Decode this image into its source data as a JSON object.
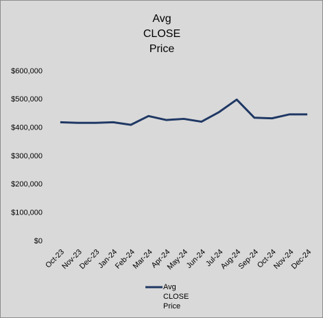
{
  "chart_data": {
    "type": "line",
    "title": "Avg CLOSE Price",
    "categories": [
      "Oct-23",
      "Nov-23",
      "Dec-23",
      "Jan-24",
      "Feb-24",
      "Mar-24",
      "Apr-24",
      "May-24",
      "Jun-24",
      "Jul-24",
      "Aug-24",
      "Sep-24",
      "Oct-24",
      "Nov-24",
      "Dec-24"
    ],
    "series": [
      {
        "name": "Avg CLOSE Price",
        "color": "#1f3864",
        "values": [
          420000,
          418000,
          418000,
          420000,
          411000,
          442000,
          428000,
          432000,
          422000,
          456000,
          500000,
          436000,
          434000,
          448000,
          448000
        ]
      }
    ],
    "ylim": [
      0,
      600000
    ],
    "yticks": [
      {
        "value": 0,
        "label": "$0"
      },
      {
        "value": 100000,
        "label": "$100,000"
      },
      {
        "value": 200000,
        "label": "$200,000"
      },
      {
        "value": 300000,
        "label": "$300,000"
      },
      {
        "value": 400000,
        "label": "$400,000"
      },
      {
        "value": 500000,
        "label": "$500,000"
      },
      {
        "value": 600000,
        "label": "$600,000"
      }
    ],
    "grid": false,
    "legend": "bottom"
  }
}
